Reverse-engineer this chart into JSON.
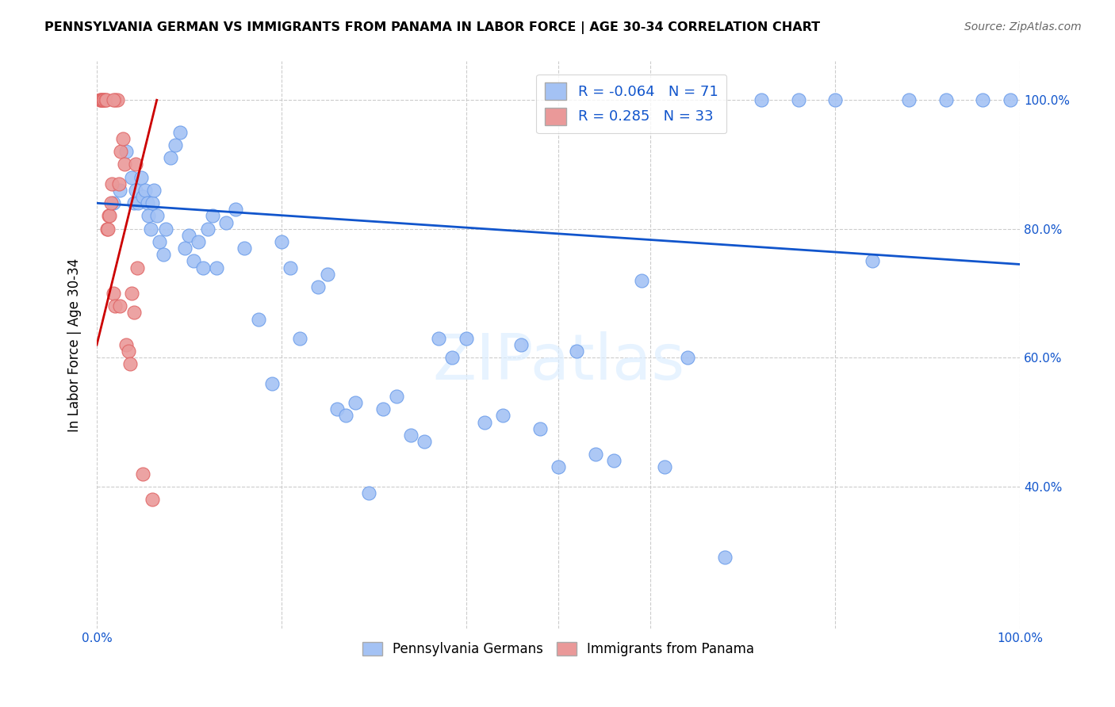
{
  "title": "PENNSYLVANIA GERMAN VS IMMIGRANTS FROM PANAMA IN LABOR FORCE | AGE 30-34 CORRELATION CHART",
  "source": "Source: ZipAtlas.com",
  "ylabel": "In Labor Force | Age 30-34",
  "xlim": [
    0.0,
    1.0
  ],
  "ylim": [
    0.18,
    1.06
  ],
  "y_ticks": [
    0.4,
    0.6,
    0.8,
    1.0
  ],
  "y_tick_labels": [
    "40.0%",
    "60.0%",
    "80.0%",
    "100.0%"
  ],
  "x_ticks": [
    0.0,
    0.2,
    0.4,
    0.5,
    0.6,
    0.8,
    1.0
  ],
  "legend_r_blue": "-0.064",
  "legend_n_blue": "71",
  "legend_r_pink": " 0.285",
  "legend_n_pink": "33",
  "blue_color": "#a4c2f4",
  "blue_edge_color": "#6d9eeb",
  "pink_color": "#ea9999",
  "pink_edge_color": "#e06666",
  "trend_blue_color": "#1155cc",
  "trend_pink_color": "#cc0000",
  "watermark": "ZIPatlas",
  "blue_points_x": [
    0.018,
    0.025,
    0.032,
    0.038,
    0.04,
    0.042,
    0.045,
    0.048,
    0.05,
    0.052,
    0.055,
    0.056,
    0.058,
    0.06,
    0.062,
    0.065,
    0.068,
    0.072,
    0.075,
    0.08,
    0.085,
    0.09,
    0.095,
    0.1,
    0.105,
    0.11,
    0.115,
    0.12,
    0.125,
    0.13,
    0.14,
    0.15,
    0.16,
    0.175,
    0.19,
    0.2,
    0.21,
    0.22,
    0.24,
    0.25,
    0.26,
    0.27,
    0.28,
    0.295,
    0.31,
    0.325,
    0.34,
    0.355,
    0.37,
    0.385,
    0.4,
    0.42,
    0.44,
    0.46,
    0.48,
    0.5,
    0.52,
    0.54,
    0.56,
    0.59,
    0.615,
    0.64,
    0.68,
    0.72,
    0.76,
    0.8,
    0.84,
    0.88,
    0.92,
    0.96,
    0.99
  ],
  "blue_points_y": [
    0.84,
    0.86,
    0.92,
    0.88,
    0.84,
    0.86,
    0.84,
    0.88,
    0.85,
    0.86,
    0.84,
    0.82,
    0.8,
    0.84,
    0.86,
    0.82,
    0.78,
    0.76,
    0.8,
    0.91,
    0.93,
    0.95,
    0.77,
    0.79,
    0.75,
    0.78,
    0.74,
    0.8,
    0.82,
    0.74,
    0.81,
    0.83,
    0.77,
    0.66,
    0.56,
    0.78,
    0.74,
    0.63,
    0.71,
    0.73,
    0.52,
    0.51,
    0.53,
    0.39,
    0.52,
    0.54,
    0.48,
    0.47,
    0.63,
    0.6,
    0.63,
    0.5,
    0.51,
    0.62,
    0.49,
    0.43,
    0.61,
    0.45,
    0.44,
    0.72,
    0.43,
    0.6,
    0.29,
    1.0,
    1.0,
    1.0,
    0.75,
    1.0,
    1.0,
    1.0,
    1.0
  ],
  "pink_points_x": [
    0.003,
    0.004,
    0.005,
    0.006,
    0.007,
    0.008,
    0.009,
    0.01,
    0.011,
    0.012,
    0.013,
    0.014,
    0.015,
    0.016,
    0.018,
    0.02,
    0.022,
    0.024,
    0.026,
    0.028,
    0.03,
    0.032,
    0.034,
    0.036,
    0.038,
    0.04,
    0.042,
    0.044,
    0.05,
    0.06,
    0.018,
    0.02,
    0.025
  ],
  "pink_points_y": [
    1.0,
    1.0,
    1.0,
    1.0,
    1.0,
    1.0,
    1.0,
    1.0,
    0.8,
    0.8,
    0.82,
    0.82,
    0.84,
    0.87,
    0.7,
    1.0,
    1.0,
    0.87,
    0.92,
    0.94,
    0.9,
    0.62,
    0.61,
    0.59,
    0.7,
    0.67,
    0.9,
    0.74,
    0.42,
    0.38,
    1.0,
    0.68,
    0.68
  ],
  "blue_trend_x": [
    0.0,
    1.0
  ],
  "blue_trend_y": [
    0.84,
    0.745
  ],
  "pink_trend_x": [
    0.0,
    0.065
  ],
  "pink_trend_y": [
    0.62,
    1.0
  ]
}
